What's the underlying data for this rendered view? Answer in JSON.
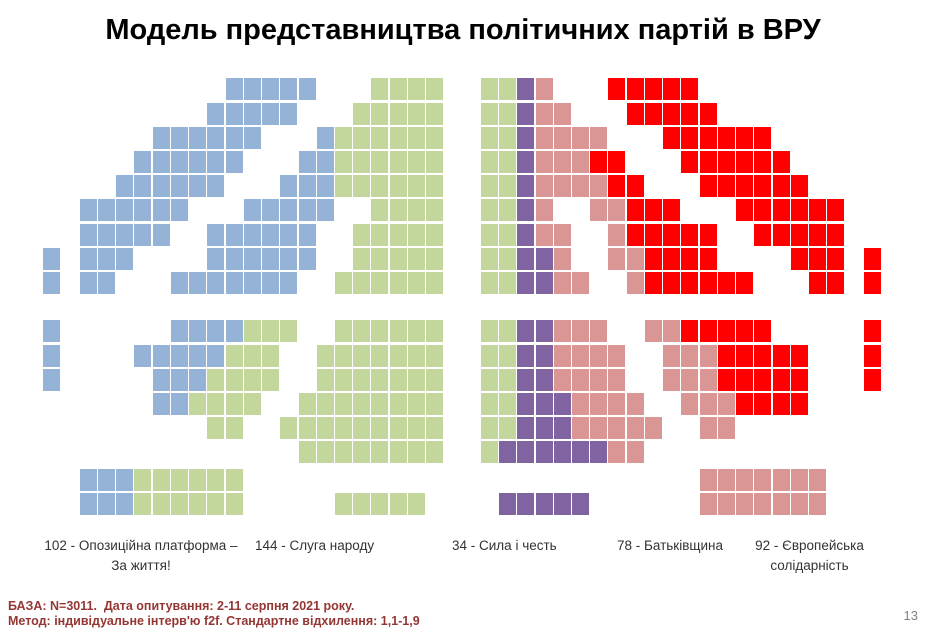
{
  "title": "Модель представництва політичних партій в ВРУ",
  "chart_data": {
    "type": "parliament-seat-grid",
    "title": "Модель представництва політичних партій в ВРУ",
    "total_seats": 450,
    "parties": [
      {
        "code": "B",
        "name": "Опозиційна платформа – За життя!",
        "seats": 102,
        "color": "#95B3D7"
      },
      {
        "code": "G",
        "name": "Слуга народу",
        "seats": 144,
        "color": "#C3D69B"
      },
      {
        "code": "P",
        "name": "Сила і честь",
        "seats": 34,
        "color": "#8064A2"
      },
      {
        "code": "K",
        "name": "Батьківщина",
        "seats": 78,
        "color": "#D99694"
      },
      {
        "code": "R",
        "name": "Європейська солідарність",
        "seats": 92,
        "color": "#FF0000"
      }
    ],
    "grid_legend": {
      ".": "empty",
      "B": "#95B3D7",
      "G": "#C3D69B",
      "P": "#8064A2",
      "K": "#D99694",
      "R": "#FF0000"
    },
    "grid_rows": [
      "..........BBBBB...GGGG..GGPK...RRRRR...........",
      ".........BBBBB...GGGGG..GGPKK...RRRRR..........",
      "......BBBBBB...BGGGGGG..GGPKKKK...RRRRRR.......",
      ".....BBBBBB...BBGGGGGG..GGPKKKRR...RRRRRR......",
      "....BBBBBB...BBBGGGGGG..GGPKKKKRR...RRRRRR.....",
      "..BBBBBB...BBBBB..GGGG..GGPK..KKRRR...RRRRRR...",
      "..BBBBB..BBBBBB..GGGGG..GGPKK..KRRRRR..RRRRR...",
      "B.BBB....BBBBBB..GGGGG..GGPPK..KKRRRR....RRR.R.",
      "B.BB...BBBBBBB..GGGGGG..GGPPKK..KRRRRRR...RR.R.",
      "...............................................",
      "B......BBBBGGG..GGGGGG..GGPPKKK..KKRRRRR.....R.",
      "B....BBBBBGGG..GGGGGGG..GGPPKKKK..KKKRRRRR...R.",
      "B.....BBBGGGG..GGGGGGG..GGPPKKKK..KKKRRRRR...R.",
      "......BBGGGG..GGGGGGGG..GGPPPKKKK..KKKRRRR.....",
      ".........GG..GGGGGGGGG..GGPPPKKKKK..KK.........",
      "..............GGGGGGGG..GPPPPPPKK..............",
      "..BBBGGGGGG.........................KKKKKKK....",
      "..BBBGGGGGG.....GGGGG....PPPPP......KKKKKKK...."
    ]
  },
  "legend": {
    "items": [
      {
        "line1": "102 - Опозиційна платформа –",
        "line2": "За життя!"
      },
      {
        "line1": "144 - Слуга народу",
        "line2": ""
      },
      {
        "line1": "34 - Сила і честь",
        "line2": ""
      },
      {
        "line1": "78 - Батьківщина",
        "line2": ""
      },
      {
        "line1": "92 - Європейська",
        "line2": "солідарність"
      }
    ]
  },
  "footer": {
    "line1": "БАЗА: N=3011.  Дата опитування: 2-11 серпня 2021 року.",
    "line2": "Метод: індивідуальне інтерв'ю f2f. Стандартне відхилення: 1,1-1,9"
  },
  "page_number": "13"
}
